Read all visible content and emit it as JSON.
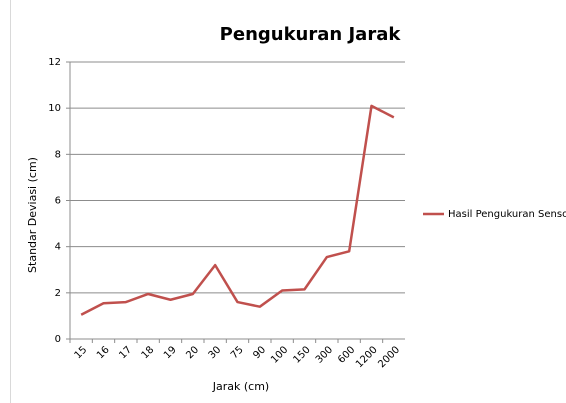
{
  "chart_data": {
    "type": "line",
    "title": "Pengukuran Jarak",
    "x_label": "Jarak (cm)",
    "y_label": "Standar Deviasi (cm)",
    "categories": [
      "15",
      "16",
      "17",
      "18",
      "19",
      "20",
      "30",
      "75",
      "90",
      "100",
      "150",
      "300",
      "600",
      "1200",
      "2000"
    ],
    "series": [
      {
        "name": "Hasil Pengukuran Sensor",
        "color": "#c0504d",
        "values": [
          1.05,
          1.55,
          1.6,
          1.95,
          1.7,
          1.95,
          3.2,
          1.6,
          1.4,
          2.1,
          2.15,
          3.55,
          3.8,
          10.1,
          9.6
        ]
      }
    ],
    "ylim": [
      0,
      12
    ],
    "yticks": [
      0,
      2,
      4,
      6,
      8,
      10,
      12
    ],
    "grid": true,
    "legend": "right"
  }
}
